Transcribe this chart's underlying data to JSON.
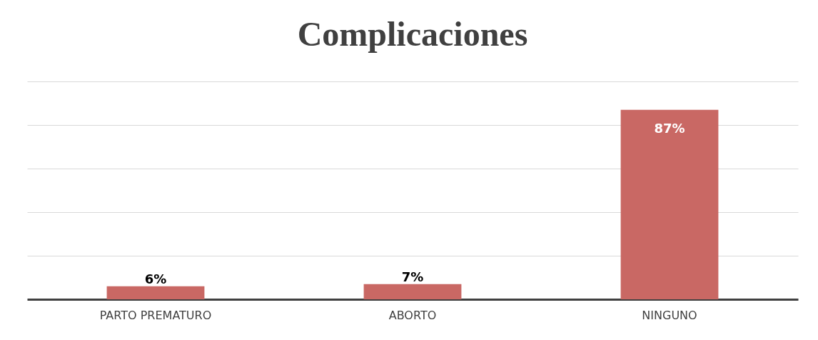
{
  "chart_data": {
    "type": "bar",
    "title": "Complicaciones",
    "categories": [
      "PARTO PREMATURO",
      "ABORTO",
      "NINGUNO"
    ],
    "values": [
      6,
      7,
      87
    ],
    "value_labels": [
      "6%",
      "7%",
      "87%"
    ],
    "color": "#c96864",
    "ylim": [
      0,
      100
    ],
    "yticks": [
      0,
      20,
      40,
      60,
      80,
      100
    ],
    "grid": "y",
    "tick_labels": "x"
  }
}
